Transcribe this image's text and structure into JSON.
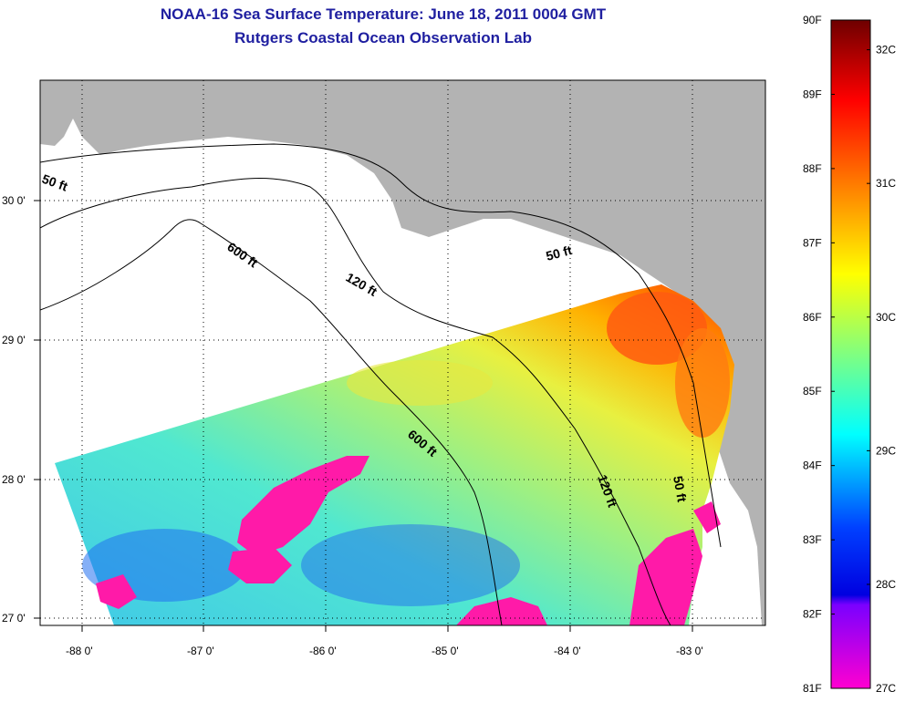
{
  "title_line1": "NOAA-16 Sea Surface Temperature:  June 18, 2011 0004 GMT",
  "title_line2": "Rutgers Coastal Ocean Observation Lab",
  "map": {
    "lon_ticks": [
      "-88 0'",
      "-87 0'",
      "-86 0'",
      "-85 0'",
      "-84 0'",
      "-83 0'"
    ],
    "lat_ticks": [
      "30 0'",
      "29 0'",
      "28 0'",
      "27 0'"
    ],
    "contour_labels": [
      "50 ft",
      "600 ft",
      "120 ft",
      "50 ft",
      "600 ft",
      "120 ft",
      "50 ft"
    ],
    "land_color": "#b3b3b3",
    "no_data_color": "#ffffff"
  },
  "colorbar": {
    "fahrenheit_labels": [
      "90F",
      "89F",
      "88F",
      "87F",
      "86F",
      "85F",
      "84F",
      "83F",
      "82F",
      "81F"
    ],
    "celsius_labels": [
      "32C",
      "31C",
      "30C",
      "29C",
      "28C",
      "27C"
    ],
    "colors_top_to_bottom": [
      "#7a0000",
      "#ff0000",
      "#ff8000",
      "#ffff00",
      "#80ff80",
      "#00ffff",
      "#0000ff",
      "#8000ff",
      "#ff00ff"
    ]
  }
}
